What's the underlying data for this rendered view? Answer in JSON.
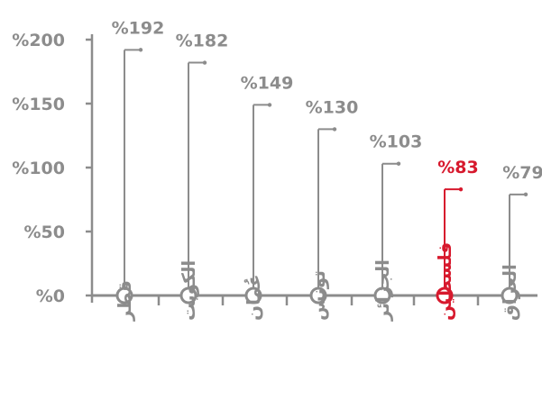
{
  "chart_data": {
    "type": "lollipop",
    "categories": [
      "قطر",
      "الكويت",
      "عُمان",
      "تونس",
      "الجزائر",
      "فلسطين",
      "العراق"
    ],
    "values": [
      192,
      182,
      149,
      130,
      103,
      83,
      79
    ],
    "value_labels": [
      "%192",
      "%182",
      "%149",
      "%130",
      "%103",
      "%83",
      "%79"
    ],
    "highlight_category": "فلسطين",
    "yticks": [
      0,
      50,
      100,
      150,
      200
    ],
    "ytick_labels": [
      "%0",
      "%50",
      "%100",
      "%150",
      "%200"
    ],
    "ylim": [
      0,
      200
    ],
    "grid": false,
    "colors": {
      "default": "#8c8c8c",
      "highlight": "#d7192d",
      "axis": "#8c8c8c",
      "text": "#8c8c8c"
    }
  }
}
